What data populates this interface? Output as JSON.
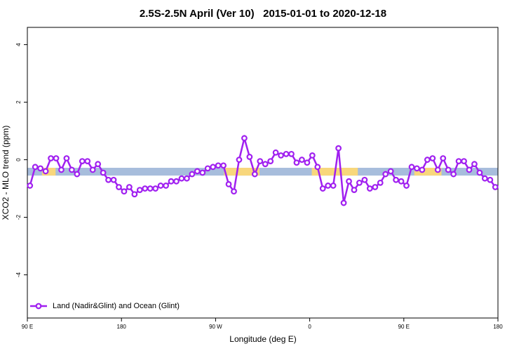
{
  "chart_data": {
    "type": "line",
    "title": "2.5S-2.5N April (Ver 10)   2015-01-01 to 2020-12-18",
    "x_label": "Longitude (deg E)",
    "y_label": "XCO2 - MLO trend (ppm)",
    "xlim": [
      90,
      540
    ],
    "xticks": [
      {
        "value": 90,
        "label": "90 E"
      },
      {
        "value": 180,
        "label": "180"
      },
      {
        "value": 270,
        "label": "90 W"
      },
      {
        "value": 360,
        "label": "0"
      },
      {
        "value": 450,
        "label": "90 E"
      },
      {
        "value": 540,
        "label": "180"
      }
    ],
    "ylim": [
      -5.5,
      4.6
    ],
    "yticks": [
      -4,
      -2,
      0,
      2,
      4
    ],
    "band": {
      "y": [
        -0.55,
        -0.28
      ],
      "color": "#a7bddc",
      "land_color": "#f8d77c",
      "land": [
        [
          104,
          117
        ],
        [
          278,
          312
        ],
        [
          362,
          406
        ],
        [
          460,
          486
        ]
      ]
    },
    "legend": "bottom-left",
    "series": [
      {
        "name": "Land (Nadir&Glint) and Ocean (Glint)",
        "color": "#a020f0",
        "x": [
          92.5,
          97.5,
          102.5,
          107.5,
          112.5,
          117.5,
          122.5,
          127.5,
          132.5,
          137.5,
          142.5,
          147.5,
          152.5,
          157.5,
          162.5,
          167.5,
          172.5,
          177.5,
          182.5,
          187.5,
          192.5,
          197.5,
          202.5,
          207.5,
          212.5,
          217.5,
          222.5,
          227.5,
          232.5,
          237.5,
          242.5,
          247.5,
          252.5,
          257.5,
          262.5,
          267.5,
          272.5,
          277.5,
          282.5,
          287.5,
          292.5,
          297.5,
          302.5,
          307.5,
          312.5,
          317.5,
          322.5,
          327.5,
          332.5,
          337.5,
          342.5,
          347.5,
          352.5,
          357.5,
          362.5,
          367.5,
          372.5,
          377.5,
          382.5,
          387.5,
          392.5,
          397.5,
          402.5,
          407.5,
          412.5,
          417.5,
          422.5,
          427.5,
          432.5,
          437.5,
          442.5,
          447.5,
          452.5,
          457.5,
          462.5,
          467.5,
          472.5,
          477.5,
          482.5,
          487.5,
          492.5,
          497.5,
          502.5,
          507.5,
          512.5,
          517.5,
          522.5,
          527.5,
          532.5,
          537.5
        ],
        "values": [
          -0.9,
          -0.25,
          -0.3,
          -0.4,
          0.05,
          0.05,
          -0.35,
          0.05,
          -0.35,
          -0.5,
          -0.05,
          -0.05,
          -0.35,
          -0.15,
          -0.45,
          -0.7,
          -0.7,
          -0.95,
          -1.1,
          -0.95,
          -1.2,
          -1.05,
          -1.0,
          -1.0,
          -1.0,
          -0.9,
          -0.9,
          -0.75,
          -0.75,
          -0.65,
          -0.65,
          -0.5,
          -0.4,
          -0.45,
          -0.3,
          -0.25,
          -0.2,
          -0.2,
          -0.85,
          -1.1,
          0.0,
          0.75,
          0.1,
          -0.5,
          -0.05,
          -0.15,
          -0.05,
          0.25,
          0.15,
          0.2,
          0.2,
          -0.1,
          0,
          -0.1,
          0.15,
          -0.25,
          -1.0,
          -0.9,
          -0.9,
          0.4,
          -1.5,
          -0.75,
          -1.05,
          -0.8,
          -0.7,
          -1.0,
          -0.95,
          -0.8,
          -0.5,
          -0.4,
          -0.7,
          -0.75,
          -0.9,
          -0.25,
          -0.3,
          -0.35,
          0,
          0.05,
          -0.35,
          0.05,
          -0.35,
          -0.5,
          -0.05,
          -0.05,
          -0.35,
          -0.15,
          -0.45,
          -0.65,
          -0.7,
          -0.95
        ]
      }
    ]
  }
}
